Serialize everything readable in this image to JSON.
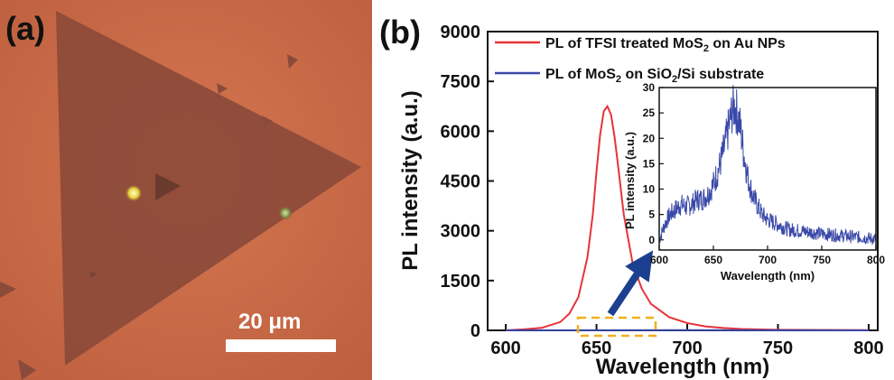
{
  "panel_a": {
    "label": "(a)",
    "scale_bar_label": "20 μm",
    "colors": {
      "substrate": "#c96a48",
      "flake": "#8c4a3a"
    }
  },
  "panel_b": {
    "label": "(b)"
  },
  "chart_data": [
    {
      "type": "line",
      "title": "",
      "xlabel": "Wavelength (nm)",
      "ylabel": "PL intensity (a.u.)",
      "xlim": [
        590,
        805
      ],
      "ylim": [
        0,
        9000
      ],
      "xticks": [
        600,
        650,
        700,
        750,
        800
      ],
      "yticks": [
        0,
        1500,
        3000,
        4500,
        6000,
        7500,
        9000
      ],
      "grid": false,
      "legend_position": "top-left",
      "series": [
        {
          "name": "PL of TFSI treated MoS2 on Au NPs",
          "name_main": "PL of TFSI treated MoS",
          "name_sub": "2",
          "name_tail": " on Au NPs",
          "color": "#e8333a",
          "x": [
            600,
            610,
            620,
            630,
            635,
            640,
            645,
            648,
            650,
            652,
            654,
            656,
            658,
            660,
            662,
            665,
            670,
            675,
            680,
            690,
            700,
            710,
            720,
            730,
            750,
            800
          ],
          "y": [
            0,
            30,
            80,
            250,
            500,
            1000,
            2200,
            3500,
            4800,
            5900,
            6600,
            6750,
            6500,
            5800,
            4900,
            3500,
            2000,
            1250,
            800,
            400,
            220,
            120,
            70,
            40,
            15,
            5
          ]
        },
        {
          "name": "PL of MoS2 on SiO2/Si substrate",
          "name_parts": [
            "PL of MoS",
            "2",
            " on SiO",
            "2",
            "/Si substrate"
          ],
          "color": "#3a49a8",
          "x": [
            600,
            650,
            700,
            750,
            800
          ],
          "y": [
            2,
            3,
            5,
            2,
            1
          ]
        }
      ],
      "annotations": {
        "highlight_box_color": "#f2b01e",
        "arrow_color": "#1c3f8f"
      }
    },
    {
      "type": "line",
      "role": "inset",
      "xlabel": "Wavelength (nm)",
      "ylabel": "PL intensity (a.u.)",
      "xlim": [
        600,
        800
      ],
      "ylim": [
        -2,
        30
      ],
      "xticks": [
        600,
        650,
        700,
        750,
        800
      ],
      "yticks": [
        0,
        5,
        10,
        15,
        20,
        25,
        30
      ],
      "series": [
        {
          "color": "#3a49a8",
          "x": [
            600,
            605,
            610,
            615,
            620,
            625,
            630,
            635,
            640,
            645,
            650,
            655,
            660,
            663,
            666,
            668,
            670,
            672,
            675,
            678,
            682,
            686,
            690,
            695,
            700,
            710,
            720,
            730,
            740,
            750,
            760,
            770,
            780,
            790,
            800
          ],
          "y": [
            0,
            3,
            5,
            6,
            7,
            6.5,
            7,
            8,
            8,
            9,
            11,
            14,
            18,
            21,
            24,
            26,
            26,
            25,
            22,
            17,
            12,
            9,
            7,
            5,
            4,
            3,
            2,
            1.8,
            1.5,
            1.2,
            1,
            0.8,
            0.6,
            0.4,
            0.2
          ]
        }
      ]
    }
  ]
}
